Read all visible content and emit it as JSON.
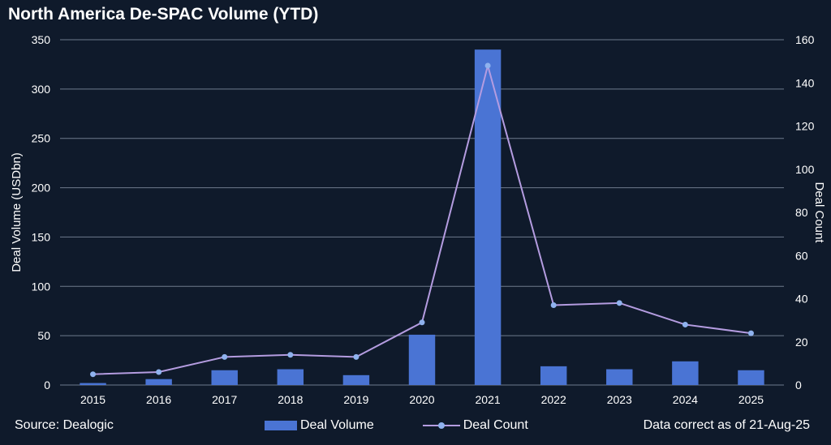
{
  "title": "North America De-SPAC Volume (YTD)",
  "footer": {
    "source": "Source: Dealogic",
    "note": "Data correct as of 21-Aug-25"
  },
  "colors": {
    "background": "#0f1a2b",
    "bar": "#4a74d4",
    "line": "#b49ce0",
    "marker": "#8fb2ee",
    "grid": "#6e7a8c",
    "text": "#ffffff"
  },
  "chart_data": {
    "type": "bar",
    "categories": [
      "2015",
      "2016",
      "2017",
      "2018",
      "2019",
      "2020",
      "2021",
      "2022",
      "2023",
      "2024",
      "2025"
    ],
    "series": [
      {
        "name": "Deal Volume",
        "type": "bar",
        "axis": "left",
        "values": [
          2,
          6,
          15,
          16,
          10,
          51,
          340,
          19,
          16,
          24,
          15
        ]
      },
      {
        "name": "Deal Count",
        "type": "line",
        "axis": "right",
        "values": [
          5,
          6,
          13,
          14,
          13,
          29,
          148,
          37,
          38,
          28,
          24
        ]
      }
    ],
    "ylabel": "Deal Volume (USDbn)",
    "y2label": "Deal Count",
    "ylim": [
      0,
      350
    ],
    "y2lim": [
      0,
      160
    ],
    "yticks": [
      "0",
      "50",
      "100",
      "150",
      "200",
      "250",
      "300",
      "350"
    ],
    "y2ticks": [
      "0",
      "20",
      "40",
      "60",
      "80",
      "100",
      "120",
      "140",
      "160"
    ],
    "grid": true,
    "legend": "bottom-center"
  }
}
